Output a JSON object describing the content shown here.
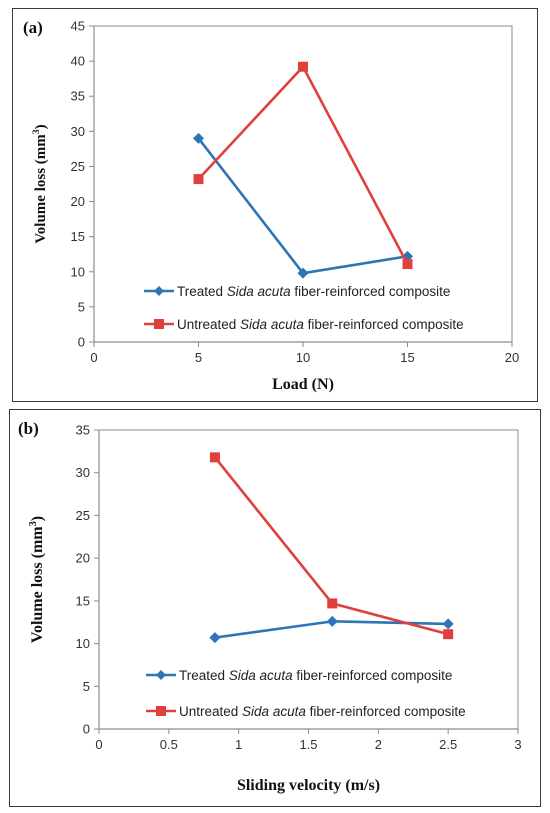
{
  "colors": {
    "treated": "#2E75B6",
    "untreated": "#E0403B",
    "axis": "#8c8c8c"
  },
  "chart_data": [
    {
      "type": "line",
      "panel_label": "(a)",
      "xlabel": "Load (N)",
      "ylabel": "Volume loss  (mm",
      "ylabel_sup": "3",
      "ylabel_close": ")",
      "xlim": [
        0,
        20
      ],
      "ylim": [
        0,
        45
      ],
      "xticks": [
        0,
        5,
        10,
        15,
        20
      ],
      "yticks": [
        0,
        5,
        10,
        15,
        20,
        25,
        30,
        35,
        40,
        45
      ],
      "xtick_labels": [
        "0",
        "5",
        "10",
        "15",
        "20"
      ],
      "ytick_labels": [
        "0",
        "5",
        "10",
        "15",
        "20",
        "25",
        "30",
        "35",
        "40",
        "45"
      ],
      "grid": false,
      "legend_position": "bottom-right inside plot",
      "series": [
        {
          "name_pre": "Treated ",
          "name_it": "Sida acuta",
          "name_post": " fiber-reinforced  composite",
          "marker": "diamond",
          "x": [
            5,
            10,
            15
          ],
          "y": [
            29.0,
            9.8,
            12.2
          ]
        },
        {
          "name_pre": "Untreated ",
          "name_it": "Sida acuta",
          "name_post": " fiber-reinforced  composite",
          "marker": "square",
          "x": [
            5,
            10,
            15
          ],
          "y": [
            23.2,
            39.2,
            11.1
          ]
        }
      ]
    },
    {
      "type": "line",
      "panel_label": "(b)",
      "xlabel": "Sliding velocity  (m/s)",
      "ylabel": "Volume loss  (mm",
      "ylabel_sup": "3",
      "ylabel_close": ")",
      "xlim": [
        0,
        3
      ],
      "ylim": [
        0,
        35
      ],
      "xticks": [
        0,
        0.5,
        1,
        1.5,
        2,
        2.5,
        3
      ],
      "yticks": [
        0,
        5,
        10,
        15,
        20,
        25,
        30,
        35
      ],
      "xtick_labels": [
        "0",
        "0.5",
        "1",
        "1.5",
        "2",
        "2.5",
        "3"
      ],
      "ytick_labels": [
        "0",
        "5",
        "10",
        "15",
        "20",
        "25",
        "30",
        "35"
      ],
      "grid": false,
      "legend_position": "bottom inside plot",
      "series": [
        {
          "name_pre": "Treated ",
          "name_it": "Sida acuta",
          "name_post": " fiber-reinforced  composite",
          "marker": "diamond",
          "x": [
            0.83,
            1.67,
            2.5
          ],
          "y": [
            10.7,
            12.6,
            12.3
          ]
        },
        {
          "name_pre": "Untreated ",
          "name_it": "Sida acuta",
          "name_post": " fiber-reinforced  composite",
          "marker": "square",
          "x": [
            0.83,
            1.67,
            2.5
          ],
          "y": [
            31.8,
            14.7,
            11.1
          ]
        }
      ]
    }
  ]
}
